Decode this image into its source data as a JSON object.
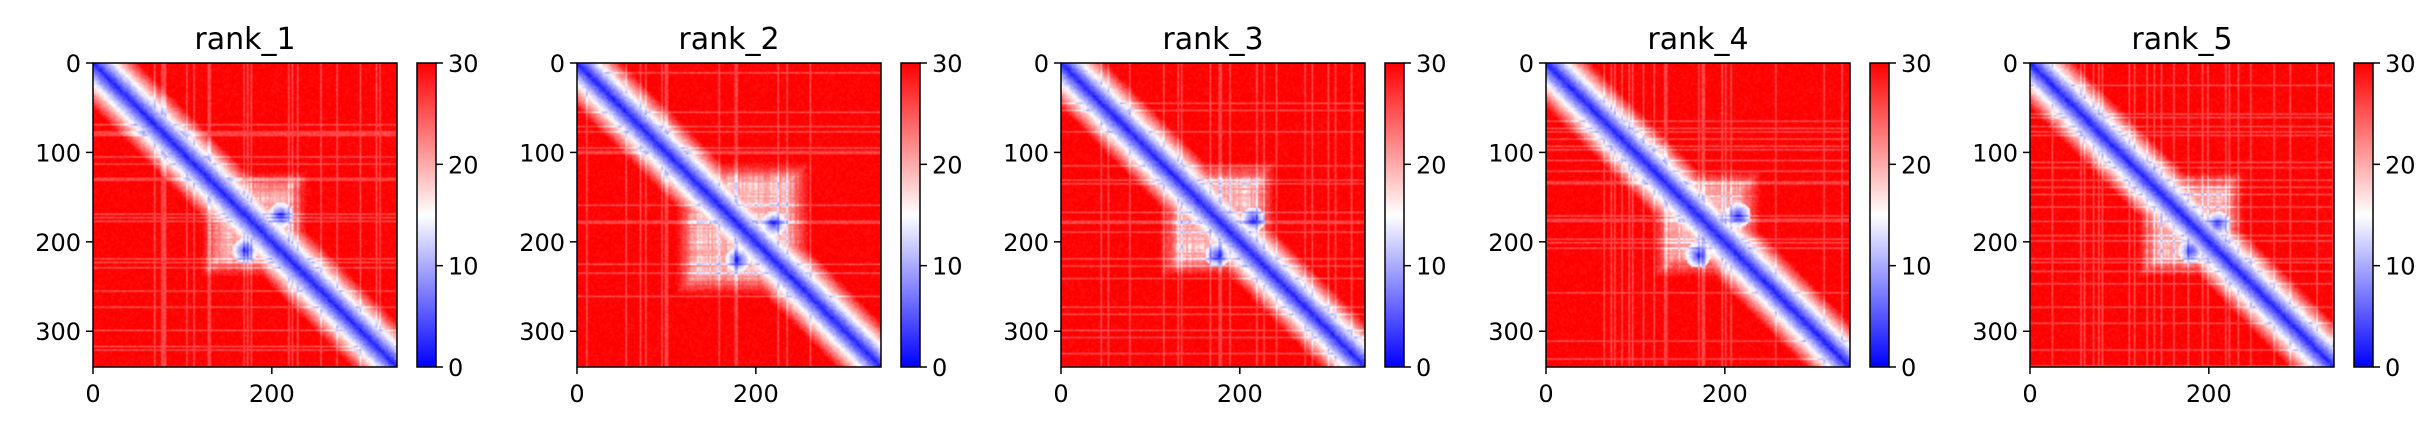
{
  "chart_data": [
    {
      "type": "heatmap",
      "title": "rank_1",
      "matrix_size": 340,
      "x_ticks": [
        0,
        200
      ],
      "y_ticks": [
        0,
        100,
        200,
        300
      ],
      "xlim": [
        0,
        340
      ],
      "ylim": [
        340,
        0
      ],
      "colorbar": {
        "range": [
          0,
          30
        ],
        "ticks": [
          0,
          10,
          20,
          30
        ],
        "colormap": "bwr",
        "colors": [
          "#0000ff",
          "#ffffff",
          "#ff0000"
        ]
      },
      "description_features": {
        "diagonal_value": 0,
        "background_value": 30,
        "contact_block_range": [
          120,
          240
        ],
        "contact_hotspots": [
          [
            160,
            160
          ],
          [
            200,
            200
          ],
          [
            170,
            210
          ],
          [
            210,
            170
          ],
          [
            225,
            225
          ]
        ]
      }
    },
    {
      "type": "heatmap",
      "title": "rank_2",
      "matrix_size": 340,
      "x_ticks": [
        0,
        200
      ],
      "y_ticks": [
        0,
        100,
        200,
        300
      ],
      "xlim": [
        0,
        340
      ],
      "ylim": [
        340,
        0
      ],
      "colorbar": {
        "range": [
          0,
          30
        ],
        "ticks": [
          0,
          10,
          20,
          30
        ],
        "colormap": "bwr",
        "colors": [
          "#0000ff",
          "#ffffff",
          "#ff0000"
        ]
      },
      "description_features": {
        "diagonal_value": 0,
        "background_value": 30,
        "contact_block_range": [
          110,
          260
        ],
        "contact_hotspots": [
          [
            160,
            160
          ],
          [
            200,
            200
          ],
          [
            180,
            220
          ],
          [
            220,
            180
          ],
          [
            260,
            260
          ]
        ]
      }
    },
    {
      "type": "heatmap",
      "title": "rank_3",
      "matrix_size": 340,
      "x_ticks": [
        0,
        200
      ],
      "y_ticks": [
        0,
        100,
        200,
        300
      ],
      "xlim": [
        0,
        340
      ],
      "ylim": [
        340,
        0
      ],
      "colorbar": {
        "range": [
          0,
          30
        ],
        "ticks": [
          0,
          10,
          20,
          30
        ],
        "colormap": "bwr",
        "colors": [
          "#0000ff",
          "#ffffff",
          "#ff0000"
        ]
      },
      "description_features": {
        "diagonal_value": 0,
        "background_value": 30,
        "contact_block_range": [
          110,
          240
        ],
        "contact_hotspots": [
          [
            160,
            160
          ],
          [
            190,
            190
          ],
          [
            175,
            215
          ],
          [
            215,
            175
          ]
        ]
      }
    },
    {
      "type": "heatmap",
      "title": "rank_4",
      "matrix_size": 340,
      "x_ticks": [
        0,
        200
      ],
      "y_ticks": [
        0,
        100,
        200,
        300
      ],
      "xlim": [
        0,
        340
      ],
      "ylim": [
        340,
        0
      ],
      "colorbar": {
        "range": [
          0,
          30
        ],
        "ticks": [
          0,
          10,
          20,
          30
        ],
        "colormap": "bwr",
        "colors": [
          "#0000ff",
          "#ffffff",
          "#ff0000"
        ]
      },
      "description_features": {
        "diagonal_value": 0,
        "background_value": 30,
        "contact_block_range": [
          120,
          240
        ],
        "contact_hotspots": [
          [
            160,
            160
          ],
          [
            185,
            185
          ],
          [
            170,
            215
          ],
          [
            215,
            170
          ]
        ]
      }
    },
    {
      "type": "heatmap",
      "title": "rank_5",
      "matrix_size": 340,
      "x_ticks": [
        0,
        200
      ],
      "y_ticks": [
        0,
        100,
        200,
        300
      ],
      "xlim": [
        0,
        340
      ],
      "ylim": [
        340,
        0
      ],
      "colorbar": {
        "range": [
          0,
          30
        ],
        "ticks": [
          0,
          10,
          20,
          30
        ],
        "colormap": "bwr",
        "colors": [
          "#0000ff",
          "#ffffff",
          "#ff0000"
        ]
      },
      "description_features": {
        "diagonal_value": 0,
        "background_value": 30,
        "contact_block_range": [
          120,
          240
        ],
        "contact_hotspots": [
          [
            160,
            160
          ],
          [
            195,
            195
          ],
          [
            180,
            210
          ],
          [
            210,
            180
          ]
        ]
      }
    }
  ]
}
